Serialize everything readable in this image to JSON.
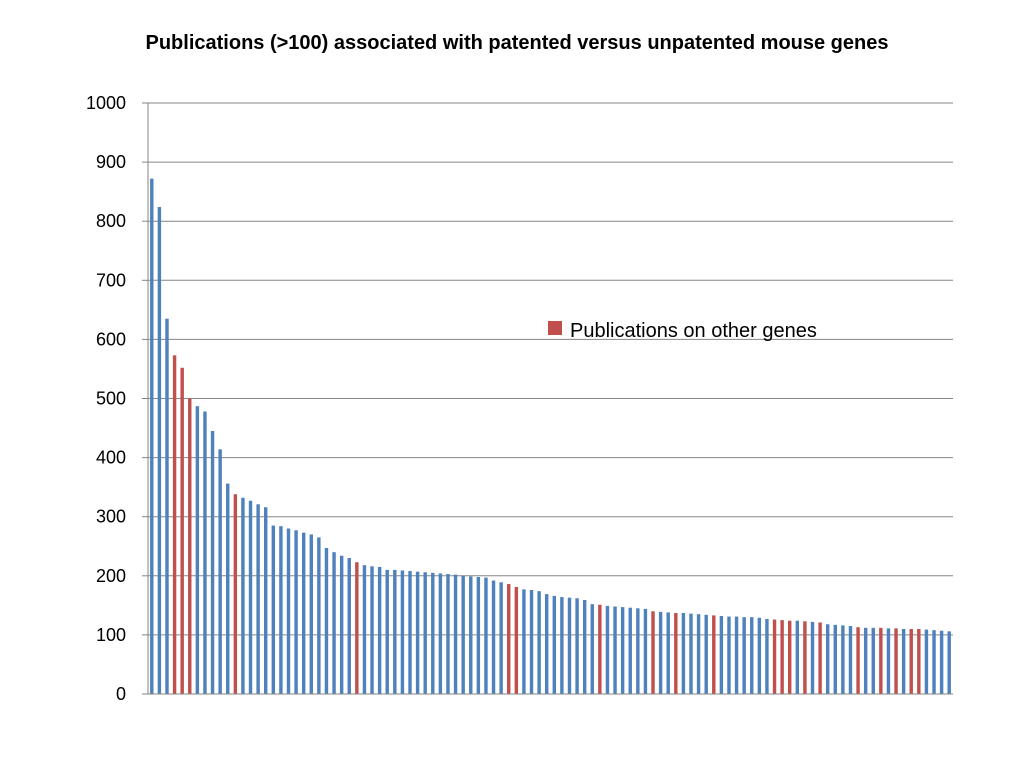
{
  "chart_data": {
    "type": "bar",
    "title": "Publications (>100) associated with patented versus unpatented mouse genes",
    "xlabel": "",
    "ylabel": "",
    "ylim": [
      0,
      1000
    ],
    "yticks": [
      0,
      100,
      200,
      300,
      400,
      500,
      600,
      700,
      800,
      900,
      1000
    ],
    "grid": true,
    "legend": {
      "position": "center-right",
      "entries": [
        {
          "label": "Publications on other genes",
          "color": "#C0504D"
        }
      ]
    },
    "colors": {
      "patented": "#4F81BD",
      "other": "#C0504D"
    },
    "values": [
      872,
      824,
      635,
      573,
      552,
      500,
      487,
      478,
      445,
      414,
      356,
      338,
      332,
      327,
      321,
      316,
      285,
      284,
      280,
      277,
      273,
      270,
      265,
      247,
      240,
      234,
      230,
      223,
      218,
      216,
      215,
      210,
      210,
      209,
      208,
      207,
      206,
      205,
      204,
      203,
      202,
      200,
      199,
      198,
      197,
      192,
      189,
      186,
      181,
      177,
      176,
      174,
      169,
      166,
      164,
      163,
      162,
      159,
      152,
      151,
      149,
      148,
      147,
      146,
      145,
      144,
      140,
      139,
      138,
      137,
      137,
      136,
      135,
      134,
      133,
      132,
      131,
      131,
      130,
      130,
      129,
      127,
      126,
      125,
      124,
      124,
      123,
      122,
      121,
      118,
      117,
      116,
      115,
      113,
      112,
      112,
      112,
      111,
      111,
      110,
      110,
      110,
      109,
      108,
      107,
      106
    ],
    "colored_indices": [
      3,
      4,
      5,
      11,
      27,
      47,
      48,
      59,
      66,
      69,
      74,
      82,
      83,
      84,
      86,
      88,
      93,
      96,
      98,
      100,
      101
    ]
  }
}
